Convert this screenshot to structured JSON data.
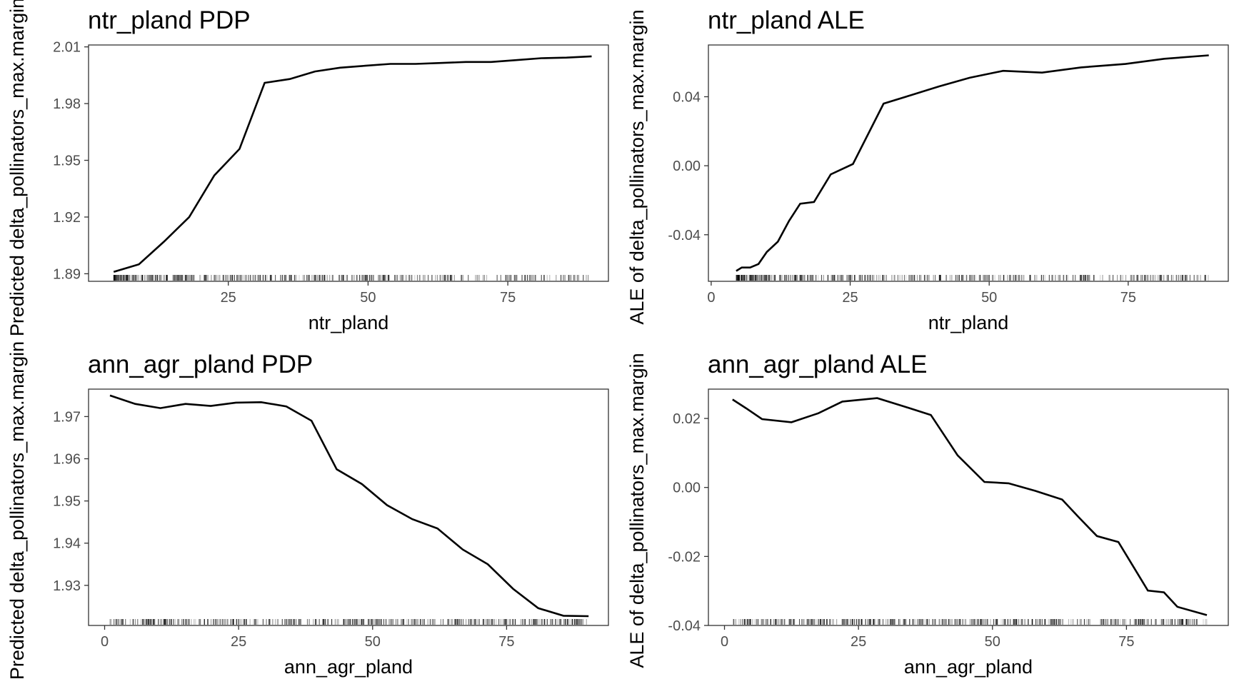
{
  "chart_data": [
    {
      "type": "line",
      "title": "ntr_pland PDP",
      "xlabel": "ntr_pland",
      "ylabel": "Predicted delta_pollinators_max.margin",
      "xlim": [
        0,
        93
      ],
      "ylim": [
        1.886,
        2.011
      ],
      "xticks": [
        25,
        50,
        75
      ],
      "xtick_labels": [
        "25",
        "50",
        "75"
      ],
      "yticks": [
        1.89,
        1.92,
        1.95,
        1.98,
        2.01
      ],
      "ytick_labels": [
        "1.89",
        "1.92",
        "1.95",
        "1.98",
        "2.01"
      ],
      "grid": false,
      "x": [
        4.5,
        9,
        13.5,
        18,
        22.5,
        27,
        31.5,
        36,
        40.5,
        45,
        49.5,
        54,
        58.5,
        63,
        67.5,
        72,
        76.5,
        81,
        85.5,
        90
      ],
      "y": [
        1.891,
        1.895,
        1.907,
        1.92,
        1.942,
        1.956,
        1.991,
        1.993,
        1.997,
        1.999,
        2.0,
        2.001,
        2.001,
        2.0015,
        2.002,
        2.002,
        2.003,
        2.004,
        2.0043,
        2.005
      ]
    },
    {
      "type": "line",
      "title": "ntr_pland ALE",
      "xlabel": "ntr_pland",
      "ylabel": "ALE of delta_pollinators_max.margin",
      "xlim": [
        -0.5,
        93
      ],
      "ylim": [
        -0.067,
        0.07
      ],
      "xticks": [
        0,
        25,
        50,
        75
      ],
      "xtick_labels": [
        "0",
        "25",
        "50",
        "75"
      ],
      "yticks": [
        -0.04,
        0.0,
        0.04
      ],
      "ytick_labels": [
        "-0.04",
        "0.00",
        "0.04"
      ],
      "grid": false,
      "x": [
        4.5,
        5.5,
        7,
        8.5,
        10,
        12,
        14,
        16,
        18.5,
        21.5,
        25.5,
        31,
        36,
        41,
        46.5,
        52.5,
        59.5,
        66.5,
        74.5,
        81.5,
        89.5
      ],
      "y": [
        -0.061,
        -0.059,
        -0.059,
        -0.057,
        -0.05,
        -0.044,
        -0.032,
        -0.022,
        -0.021,
        -0.005,
        0.001,
        0.036,
        0.041,
        0.046,
        0.051,
        0.055,
        0.054,
        0.057,
        0.059,
        0.062,
        0.064
      ]
    },
    {
      "type": "line",
      "title": "ann_agr_pland PDP",
      "xlabel": "ann_agr_pland",
      "ylabel": "Predicted delta_pollinators_max.margin",
      "xlim": [
        -3,
        94
      ],
      "ylim": [
        1.9205,
        1.9765
      ],
      "xticks": [
        0,
        25,
        50,
        75
      ],
      "xtick_labels": [
        "0",
        "25",
        "50",
        "75"
      ],
      "yticks": [
        1.93,
        1.94,
        1.95,
        1.96,
        1.97
      ],
      "ytick_labels": [
        "1.93",
        "1.94",
        "1.95",
        "1.96",
        "1.97"
      ],
      "grid": false,
      "x": [
        1,
        5.7,
        10.4,
        15.1,
        19.8,
        24.5,
        29.2,
        33.9,
        38.6,
        43.3,
        48,
        52.7,
        57.4,
        62.1,
        66.8,
        71.5,
        76.2,
        80.9,
        85.6,
        90.3
      ],
      "y": [
        1.975,
        1.973,
        1.972,
        1.973,
        1.9725,
        1.9733,
        1.9734,
        1.9724,
        1.969,
        1.9575,
        1.954,
        1.949,
        1.9457,
        1.9435,
        1.9385,
        1.935,
        1.9292,
        1.9246,
        1.9228,
        1.9227
      ]
    },
    {
      "type": "line",
      "title": "ann_agr_pland ALE",
      "xlabel": "ann_agr_pland",
      "ylabel": "ALE of delta_pollinators_max.margin",
      "xlim": [
        -3,
        94
      ],
      "ylim": [
        -0.04,
        0.0285
      ],
      "xticks": [
        0,
        25,
        50,
        75
      ],
      "xtick_labels": [
        "0",
        "25",
        "50",
        "75"
      ],
      "yticks": [
        -0.04,
        -0.02,
        0.0,
        0.02
      ],
      "ytick_labels": [
        "-0.04",
        "-0.02",
        "0.00",
        "0.02"
      ],
      "grid": false,
      "x": [
        1.5,
        4,
        7,
        12.5,
        17.5,
        22,
        28.5,
        33.5,
        38.5,
        43.5,
        48.5,
        53,
        58,
        63,
        66,
        69.5,
        73.5,
        76.5,
        79,
        82,
        84.5,
        90
      ],
      "y": [
        0.0255,
        0.023,
        0.0198,
        0.0189,
        0.0215,
        0.0249,
        0.0259,
        0.0235,
        0.021,
        0.0093,
        0.0016,
        0.0012,
        -0.001,
        -0.0035,
        -0.0085,
        -0.0141,
        -0.0158,
        -0.0235,
        -0.0299,
        -0.0304,
        -0.0346,
        -0.037
      ]
    }
  ]
}
